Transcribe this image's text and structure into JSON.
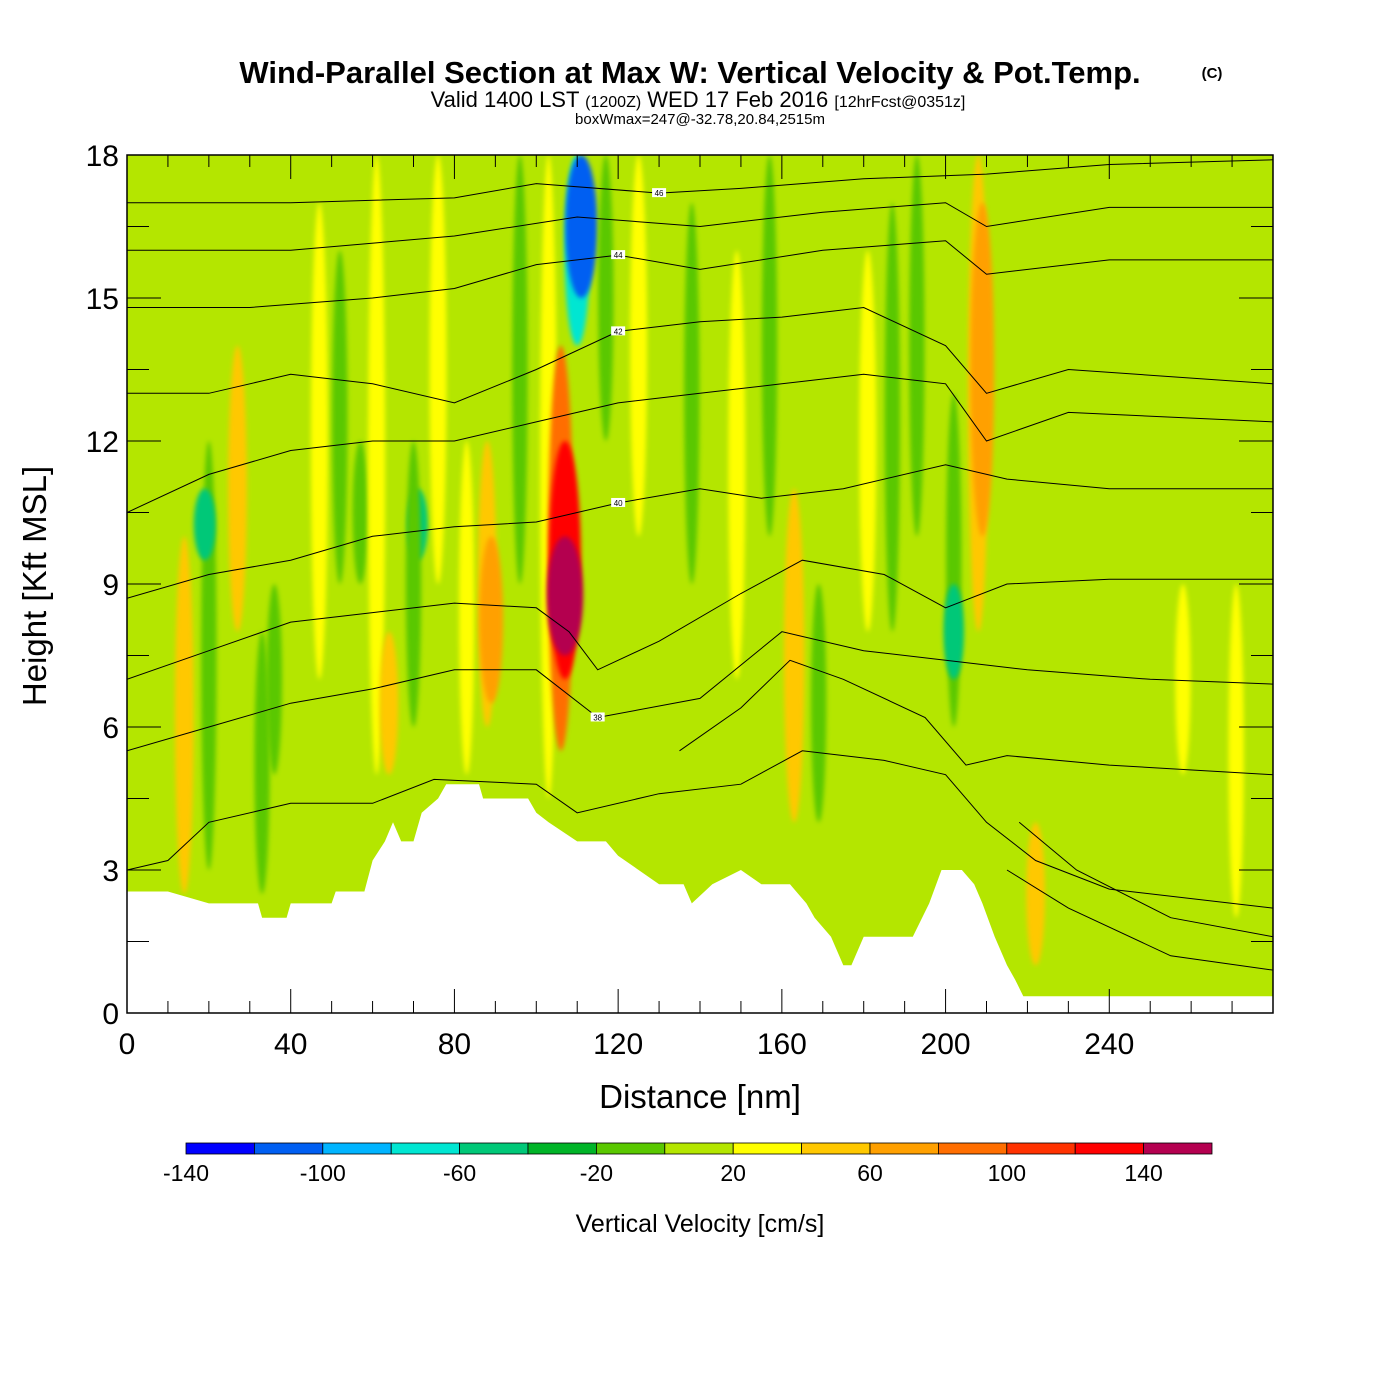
{
  "title": {
    "main": "Wind-Parallel Section at Max W: Vertical Velocity & Pot.Temp.",
    "copyright": "(C)",
    "valid_prefix": "Valid 1400 LST",
    "utc": "(1200Z)",
    "date": "WED 17 Feb 2016",
    "forecast": "[12hrFcst@0351z]",
    "boxwmax": "boxWmax=247@-32.78,20.84,2515m"
  },
  "chart_data": {
    "type": "heatmap",
    "xlabel": "Distance [nm]",
    "ylabel": "Height [Kft MSL]",
    "xlim": [
      0,
      280
    ],
    "ylim": [
      0,
      18
    ],
    "x_ticks": [
      "0",
      "40",
      "80",
      "120",
      "160",
      "200",
      "240"
    ],
    "y_ticks": [
      "0",
      "3",
      "6",
      "9",
      "12",
      "15",
      "18"
    ],
    "colorbar": {
      "title": "Vertical Velocity [cm/s]",
      "levels": [
        -140,
        -120,
        -100,
        -80,
        -60,
        -40,
        -20,
        0,
        20,
        40,
        60,
        80,
        100,
        120,
        140,
        160
      ],
      "tick_labels": [
        "-140",
        "-100",
        "-60",
        "-20",
        "20",
        "60",
        "100",
        "140"
      ],
      "colors": [
        "#0000ff",
        "#005ff2",
        "#00b4ff",
        "#00e6d2",
        "#00c878",
        "#00b428",
        "#5ac800",
        "#b4e600",
        "#ffff00",
        "#ffc800",
        "#ffa000",
        "#ff6e00",
        "#ff3200",
        "#ff0000",
        "#b40050"
      ]
    },
    "terrain": [
      [
        0,
        2.55
      ],
      [
        10,
        2.55
      ],
      [
        20,
        2.3
      ],
      [
        32,
        2.3
      ],
      [
        33,
        2.0
      ],
      [
        39,
        2.0
      ],
      [
        40,
        2.3
      ],
      [
        50,
        2.3
      ],
      [
        51,
        2.55
      ],
      [
        58,
        2.55
      ],
      [
        60,
        3.2
      ],
      [
        63,
        3.6
      ],
      [
        65,
        4.0
      ],
      [
        67,
        3.6
      ],
      [
        70,
        3.6
      ],
      [
        72,
        4.2
      ],
      [
        76,
        4.5
      ],
      [
        78,
        4.8
      ],
      [
        86,
        4.8
      ],
      [
        87,
        4.5
      ],
      [
        98,
        4.5
      ],
      [
        100,
        4.2
      ],
      [
        103,
        4.0
      ],
      [
        110,
        3.6
      ],
      [
        117,
        3.6
      ],
      [
        120,
        3.3
      ],
      [
        125,
        3.0
      ],
      [
        130,
        2.7
      ],
      [
        136,
        2.7
      ],
      [
        138,
        2.3
      ],
      [
        143,
        2.7
      ],
      [
        150,
        3.0
      ],
      [
        155,
        2.7
      ],
      [
        162,
        2.7
      ],
      [
        166,
        2.3
      ],
      [
        168,
        2.0
      ],
      [
        172,
        1.6
      ],
      [
        175,
        1.0
      ],
      [
        177,
        1.0
      ],
      [
        180,
        1.6
      ],
      [
        192,
        1.6
      ],
      [
        196,
        2.3
      ],
      [
        199,
        3.0
      ],
      [
        204,
        3.0
      ],
      [
        207,
        2.7
      ],
      [
        209,
        2.3
      ],
      [
        212,
        1.6
      ],
      [
        215,
        1.0
      ],
      [
        217,
        0.7
      ],
      [
        219,
        0.35
      ],
      [
        280,
        0.35
      ]
    ],
    "w_field": [
      {
        "x": 20,
        "z": [
          3,
          12
        ],
        "w": -20
      },
      {
        "x": 19,
        "z": [
          9.5,
          11
        ],
        "w": -60
      },
      {
        "x": 14,
        "z": [
          2.5,
          10
        ],
        "w": 40
      },
      {
        "x": 27,
        "z": [
          8,
          14
        ],
        "w": 40
      },
      {
        "x": 33,
        "z": [
          2.5,
          8
        ],
        "w": -20
      },
      {
        "x": 36,
        "z": [
          5,
          9
        ],
        "w": -20
      },
      {
        "x": 47,
        "z": [
          7,
          17
        ],
        "w": 30
      },
      {
        "x": 52,
        "z": [
          9,
          16
        ],
        "w": -20
      },
      {
        "x": 57,
        "z": [
          9,
          12
        ],
        "w": -20
      },
      {
        "x": 61,
        "z": [
          5,
          18
        ],
        "w": 30
      },
      {
        "x": 64,
        "z": [
          5,
          8
        ],
        "w": 40
      },
      {
        "x": 71,
        "z": [
          9.5,
          11
        ],
        "w": -50
      },
      {
        "x": 70,
        "z": [
          6,
          12
        ],
        "w": -20
      },
      {
        "x": 76,
        "z": [
          9,
          18
        ],
        "w": 30
      },
      {
        "x": 83,
        "z": [
          5,
          12
        ],
        "w": 20
      },
      {
        "x": 88,
        "z": [
          6,
          12
        ],
        "w": 40
      },
      {
        "x": 89,
        "z": [
          6.5,
          10
        ],
        "w": 70
      },
      {
        "x": 96,
        "z": [
          9,
          18
        ],
        "w": -20
      },
      {
        "x": 103,
        "z": [
          4.5,
          18
        ],
        "w": 30
      },
      {
        "x": 106,
        "z": [
          5.5,
          14
        ],
        "w": 80
      },
      {
        "x": 107,
        "z": [
          7,
          12
        ],
        "w": 120
      },
      {
        "x": 107,
        "z": [
          7.5,
          10
        ],
        "w": 150
      },
      {
        "x": 110,
        "z": [
          14,
          18
        ],
        "w": -80
      },
      {
        "x": 111,
        "z": [
          15,
          18
        ],
        "w": -120
      },
      {
        "x": 117,
        "z": [
          12,
          18
        ],
        "w": -20
      },
      {
        "x": 125,
        "z": [
          10,
          18
        ],
        "w": 30
      },
      {
        "x": 138,
        "z": [
          9,
          17
        ],
        "w": -20
      },
      {
        "x": 149,
        "z": [
          7,
          16
        ],
        "w": 30
      },
      {
        "x": 157,
        "z": [
          10,
          18
        ],
        "w": -20
      },
      {
        "x": 163,
        "z": [
          4,
          11
        ],
        "w": 50
      },
      {
        "x": 169,
        "z": [
          4,
          9
        ],
        "w": -20
      },
      {
        "x": 181,
        "z": [
          8,
          16
        ],
        "w": 30
      },
      {
        "x": 187,
        "z": [
          8,
          17
        ],
        "w": -20
      },
      {
        "x": 193,
        "z": [
          10,
          18
        ],
        "w": -20
      },
      {
        "x": 202,
        "z": [
          6,
          13
        ],
        "w": -20
      },
      {
        "x": 202,
        "z": [
          7,
          9
        ],
        "w": -50
      },
      {
        "x": 208,
        "z": [
          8,
          18
        ],
        "w": 50
      },
      {
        "x": 209,
        "z": [
          10,
          17
        ],
        "w": 70
      },
      {
        "x": 222,
        "z": [
          1,
          4
        ],
        "w": 40
      },
      {
        "x": 258,
        "z": [
          5,
          9
        ],
        "w": 20
      },
      {
        "x": 271,
        "z": [
          2,
          9
        ],
        "w": 20
      }
    ],
    "theta_contours": [
      {
        "label": "38",
        "pts": [
          [
            0,
            5.5
          ],
          [
            20,
            6.0
          ],
          [
            40,
            6.5
          ],
          [
            60,
            6.8
          ],
          [
            80,
            7.2
          ],
          [
            100,
            7.2
          ],
          [
            115,
            6.2
          ],
          [
            140,
            6.6
          ],
          [
            160,
            8.0
          ],
          [
            180,
            7.6
          ],
          [
            200,
            7.4
          ],
          [
            220,
            7.2
          ],
          [
            250,
            7.0
          ],
          [
            280,
            6.9
          ]
        ]
      },
      {
        "label": "40",
        "pts": [
          [
            0,
            8.7
          ],
          [
            20,
            9.2
          ],
          [
            40,
            9.5
          ],
          [
            60,
            10.0
          ],
          [
            80,
            10.2
          ],
          [
            100,
            10.3
          ],
          [
            120,
            10.7
          ],
          [
            140,
            11.0
          ],
          [
            155,
            10.8
          ],
          [
            175,
            11.0
          ],
          [
            200,
            11.5
          ],
          [
            215,
            11.2
          ],
          [
            240,
            11.0
          ],
          [
            280,
            11.0
          ]
        ]
      },
      {
        "label": "42",
        "pts": [
          [
            0,
            13.0
          ],
          [
            20,
            13.0
          ],
          [
            40,
            13.4
          ],
          [
            60,
            13.2
          ],
          [
            80,
            12.8
          ],
          [
            100,
            13.5
          ],
          [
            120,
            14.3
          ],
          [
            140,
            14.5
          ],
          [
            160,
            14.6
          ],
          [
            180,
            14.8
          ],
          [
            200,
            14.0
          ],
          [
            210,
            13.0
          ],
          [
            230,
            13.5
          ],
          [
            280,
            13.2
          ]
        ]
      },
      {
        "label": "44",
        "pts": [
          [
            0,
            14.8
          ],
          [
            30,
            14.8
          ],
          [
            60,
            15.0
          ],
          [
            80,
            15.2
          ],
          [
            100,
            15.7
          ],
          [
            120,
            15.9
          ],
          [
            140,
            15.6
          ],
          [
            170,
            16.0
          ],
          [
            200,
            16.2
          ],
          [
            210,
            15.5
          ],
          [
            240,
            15.8
          ],
          [
            280,
            15.8
          ]
        ]
      },
      {
        "label": "46",
        "pts": [
          [
            0,
            17.0
          ],
          [
            40,
            17.0
          ],
          [
            80,
            17.1
          ],
          [
            100,
            17.4
          ],
          [
            130,
            17.2
          ],
          [
            150,
            17.3
          ],
          [
            180,
            17.5
          ],
          [
            210,
            17.6
          ],
          [
            240,
            17.8
          ],
          [
            280,
            17.9
          ]
        ]
      },
      {
        "label": "",
        "pts": [
          [
            0,
            3.0
          ],
          [
            10,
            3.2
          ],
          [
            20,
            4.0
          ],
          [
            40,
            4.4
          ],
          [
            60,
            4.4
          ],
          [
            75,
            4.9
          ],
          [
            100,
            4.8
          ],
          [
            110,
            4.2
          ],
          [
            130,
            4.6
          ],
          [
            150,
            4.8
          ],
          [
            165,
            5.5
          ],
          [
            185,
            5.3
          ],
          [
            200,
            5.0
          ],
          [
            210,
            4.0
          ],
          [
            222,
            3.2
          ],
          [
            240,
            2.6
          ],
          [
            280,
            2.2
          ]
        ]
      },
      {
        "label": "",
        "pts": [
          [
            0,
            7.0
          ],
          [
            20,
            7.6
          ],
          [
            40,
            8.2
          ],
          [
            60,
            8.4
          ],
          [
            80,
            8.6
          ],
          [
            100,
            8.5
          ],
          [
            108,
            8.0
          ],
          [
            115,
            7.2
          ],
          [
            130,
            7.8
          ],
          [
            150,
            8.8
          ],
          [
            165,
            9.5
          ],
          [
            185,
            9.2
          ],
          [
            200,
            8.5
          ],
          [
            215,
            9.0
          ],
          [
            240,
            9.1
          ],
          [
            280,
            9.1
          ]
        ]
      },
      {
        "label": "",
        "pts": [
          [
            0,
            10.5
          ],
          [
            20,
            11.3
          ],
          [
            40,
            11.8
          ],
          [
            60,
            12.0
          ],
          [
            80,
            12.0
          ],
          [
            100,
            12.4
          ],
          [
            120,
            12.8
          ],
          [
            140,
            13.0
          ],
          [
            160,
            13.2
          ],
          [
            180,
            13.4
          ],
          [
            200,
            13.2
          ],
          [
            210,
            12.0
          ],
          [
            230,
            12.6
          ],
          [
            280,
            12.4
          ]
        ]
      },
      {
        "label": "",
        "pts": [
          [
            0,
            16.0
          ],
          [
            40,
            16.0
          ],
          [
            80,
            16.3
          ],
          [
            110,
            16.7
          ],
          [
            140,
            16.5
          ],
          [
            170,
            16.8
          ],
          [
            200,
            17.0
          ],
          [
            210,
            16.5
          ],
          [
            240,
            16.9
          ],
          [
            280,
            16.9
          ]
        ]
      },
      {
        "label": "",
        "pts": [
          [
            135,
            5.5
          ],
          [
            150,
            6.4
          ],
          [
            162,
            7.4
          ],
          [
            175,
            7.0
          ],
          [
            195,
            6.2
          ],
          [
            205,
            5.2
          ],
          [
            215,
            5.4
          ],
          [
            240,
            5.2
          ],
          [
            280,
            5.0
          ]
        ]
      },
      {
        "label": "",
        "pts": [
          [
            218,
            4.0
          ],
          [
            232,
            3.0
          ],
          [
            255,
            2.0
          ],
          [
            280,
            1.6
          ]
        ]
      },
      {
        "label": "",
        "pts": [
          [
            215,
            3.0
          ],
          [
            230,
            2.2
          ],
          [
            255,
            1.2
          ],
          [
            280,
            0.9
          ]
        ]
      }
    ]
  }
}
